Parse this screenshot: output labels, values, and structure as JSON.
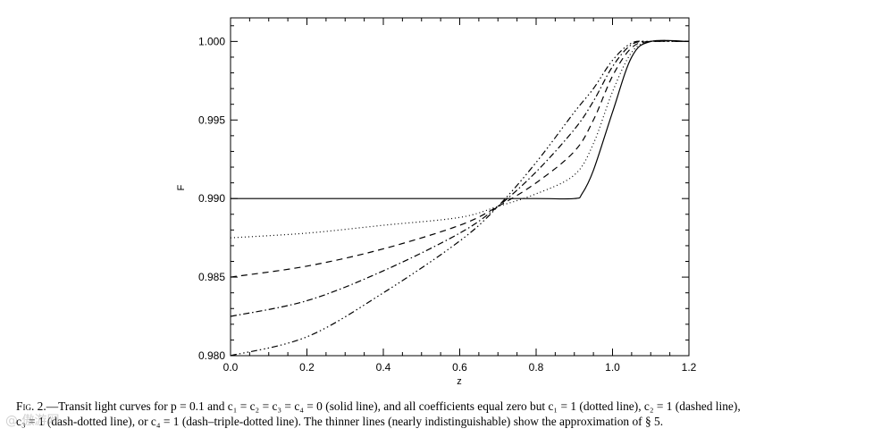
{
  "chart_data": {
    "type": "line",
    "xlabel": "z",
    "ylabel": "F",
    "xlim": [
      0.0,
      1.2
    ],
    "ylim": [
      0.98,
      1.0015
    ],
    "xticks": [
      "0.0",
      "0.2",
      "0.4",
      "0.6",
      "0.8",
      "1.0",
      "1.2"
    ],
    "yticks": [
      "0.980",
      "0.985",
      "0.990",
      "0.995",
      "1.000"
    ],
    "grid": false,
    "series": [
      {
        "style": "solid",
        "x": [
          0.0,
          0.2,
          0.4,
          0.6,
          0.8,
          0.9,
          0.92,
          0.95,
          1.0,
          1.05,
          1.1,
          1.2
        ],
        "y": [
          0.99,
          0.99,
          0.99,
          0.99,
          0.99,
          0.99,
          0.9903,
          0.9918,
          0.9955,
          0.999,
          1.0,
          1.0
        ]
      },
      {
        "style": "dotted",
        "x": [
          0.0,
          0.2,
          0.4,
          0.6,
          0.7,
          0.8,
          0.9,
          0.95,
          1.0,
          1.05,
          1.1,
          1.2
        ],
        "y": [
          0.9875,
          0.9878,
          0.9883,
          0.9888,
          0.9895,
          0.9903,
          0.9915,
          0.9935,
          0.9968,
          0.9993,
          1.0,
          1.0
        ]
      },
      {
        "style": "dashed",
        "x": [
          0.0,
          0.2,
          0.4,
          0.6,
          0.7,
          0.8,
          0.9,
          0.95,
          1.0,
          1.05,
          1.1,
          1.2
        ],
        "y": [
          0.985,
          0.9857,
          0.9868,
          0.9883,
          0.9895,
          0.991,
          0.993,
          0.995,
          0.9978,
          0.9996,
          1.0,
          1.0
        ]
      },
      {
        "style": "dash-dotted",
        "x": [
          0.0,
          0.2,
          0.4,
          0.6,
          0.7,
          0.8,
          0.9,
          0.95,
          1.0,
          1.05,
          1.1,
          1.2
        ],
        "y": [
          0.9825,
          0.9835,
          0.9854,
          0.9878,
          0.9895,
          0.9917,
          0.9944,
          0.9962,
          0.9984,
          0.9998,
          1.0,
          1.0
        ]
      },
      {
        "style": "dash-triple-dotted",
        "x": [
          0.0,
          0.2,
          0.4,
          0.6,
          0.7,
          0.8,
          0.9,
          0.95,
          1.0,
          1.05,
          1.1,
          1.2
        ],
        "y": [
          0.98,
          0.9812,
          0.984,
          0.9873,
          0.9895,
          0.9923,
          0.9955,
          0.997,
          0.9988,
          0.9999,
          1.0,
          1.0
        ]
      }
    ]
  },
  "caption": {
    "label": "Fig. 2.",
    "text_line1": "—Transit light curves for p = 0.1 and c₁ = c₂ = c₃ = c₄ = 0 (solid line), and all coefficients equal zero but c₁ = 1 (dotted line), c₂ = 1 (dashed line),",
    "text_line2": "c₃ = 1 (dash-dotted line), or c₄ = 1 (dash–triple-dotted line). The thinner lines (nearly indistinguishable) show the approximation of § 5."
  },
  "watermark": "@ 傲游网"
}
